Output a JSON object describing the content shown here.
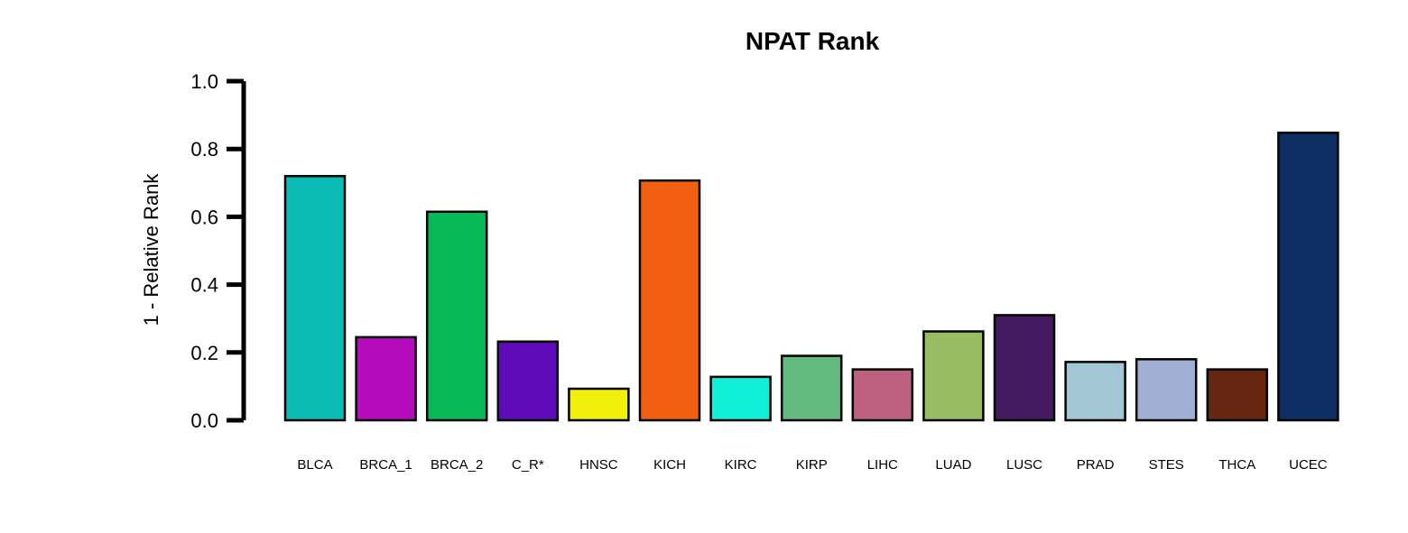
{
  "chart_data": {
    "type": "bar",
    "title": "NPAT Rank",
    "xlabel": "",
    "ylabel": "1 - Relative Rank",
    "ylim": [
      0,
      1.0
    ],
    "yticks": [
      0.0,
      0.2,
      0.4,
      0.6,
      0.8,
      1.0
    ],
    "ytick_labels": [
      "0.0",
      "0.2",
      "0.4",
      "0.6",
      "0.8",
      "1.0"
    ],
    "grid": false,
    "legend": "none",
    "categories": [
      "BLCA",
      "BRCA_1",
      "BRCA_2",
      "C_R*",
      "HNSC",
      "KICH",
      "KIRC",
      "KIRP",
      "LIHC",
      "LUAD",
      "LUSC",
      "PRAD",
      "STES",
      "THCA",
      "UCEC"
    ],
    "values": [
      0.72,
      0.245,
      0.615,
      0.232,
      0.093,
      0.707,
      0.128,
      0.19,
      0.15,
      0.262,
      0.31,
      0.172,
      0.18,
      0.15,
      0.848
    ],
    "colors": [
      "#0bbcb5",
      "#b40cbc",
      "#07b857",
      "#5f0bba",
      "#f0f00c",
      "#f06010",
      "#10f0d8",
      "#62ba80",
      "#be6080",
      "#98bc62",
      "#441a60",
      "#a2c6d4",
      "#a0aed4",
      "#652510",
      "#0d2e62"
    ]
  }
}
